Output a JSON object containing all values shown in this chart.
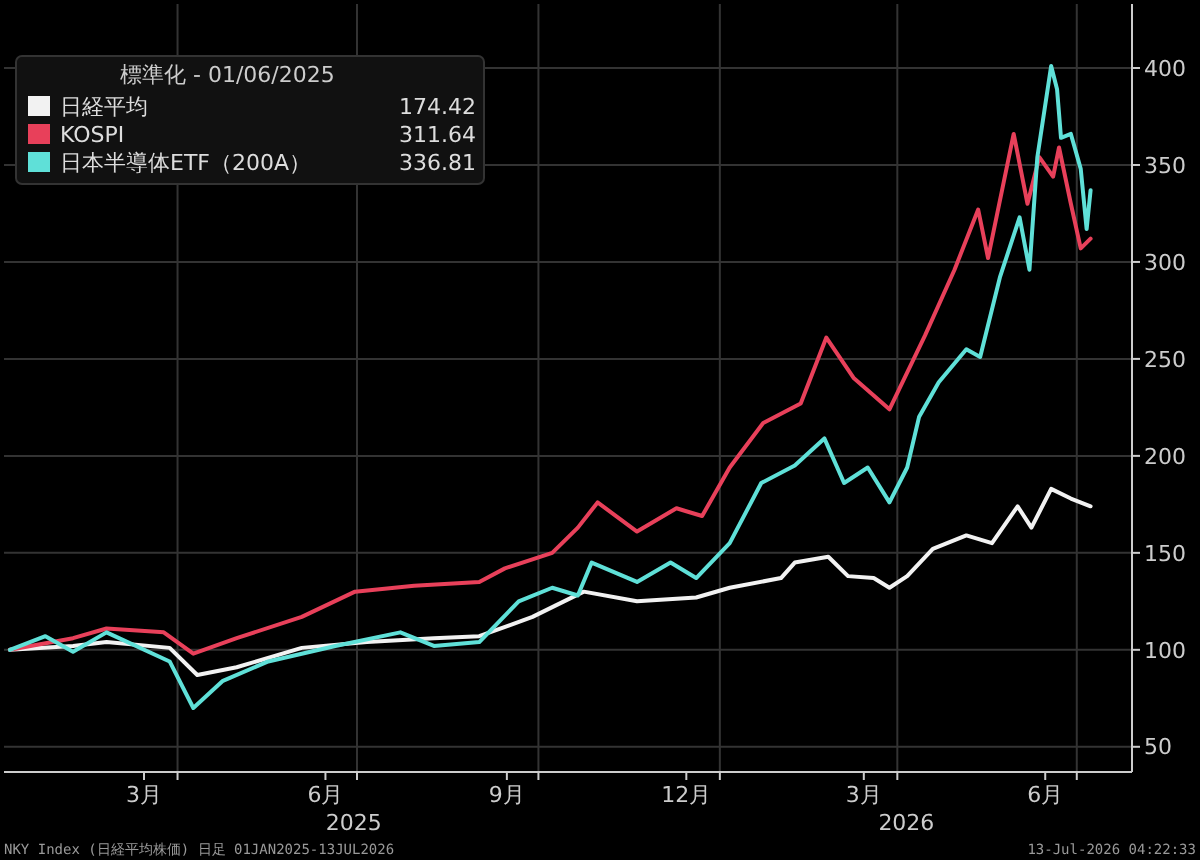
{
  "chart_data": {
    "type": "line",
    "legend_title": "標準化 - 01/06/2025",
    "legend": "top left",
    "grid": true,
    "line_style": "solid",
    "marker": "none",
    "xlim": [
      "2025-01-03",
      "2026-07-29"
    ],
    "ylim": [
      37,
      433
    ],
    "yticks": [
      50,
      100,
      150,
      200,
      250,
      300,
      350,
      400
    ],
    "xticks": [
      {
        "value": "2025-03-15",
        "label": "3月"
      },
      {
        "value": "2025-04-01",
        "label": null
      },
      {
        "value": "2025-06-15",
        "label": "6月"
      },
      {
        "value": "2025-07-01",
        "label": null
      },
      {
        "value": "2025-09-15",
        "label": "9月"
      },
      {
        "value": "2025-10-01",
        "label": null
      },
      {
        "value": "2025-12-15",
        "label": "12月"
      },
      {
        "value": "2026-01-01",
        "label": null
      },
      {
        "value": "2026-03-15",
        "label": "3月"
      },
      {
        "value": "2026-04-01",
        "label": null
      },
      {
        "value": "2026-06-15",
        "label": "6月"
      },
      {
        "value": "2026-07-01",
        "label": null
      }
    ],
    "series": [
      {
        "name": "日経平均",
        "color": "#f2f2f2",
        "x": [
          "2025-01-06",
          "2025-02-07",
          "2025-02-24",
          "2025-03-28",
          "2025-04-11",
          "2025-05-01",
          "2025-06-03",
          "2025-07-06",
          "2025-08-09",
          "2025-09-01",
          "2025-09-28",
          "2025-10-24",
          "2025-11-20",
          "2025-12-20",
          "2026-01-06",
          "2026-02-01",
          "2026-02-08",
          "2026-02-25",
          "2026-03-07",
          "2026-03-20",
          "2026-03-28",
          "2026-04-06",
          "2026-04-19",
          "2026-05-06",
          "2026-05-19",
          "2026-06-01",
          "2026-06-08",
          "2026-06-18",
          "2026-06-28",
          "2026-07-08"
        ],
        "values": [
          100,
          102,
          104,
          101,
          87,
          91,
          101,
          104,
          106,
          107,
          117,
          130,
          125,
          127,
          132,
          137,
          145,
          148,
          138,
          137,
          132,
          138,
          152,
          159,
          155,
          174,
          163,
          183,
          178,
          174
        ]
      },
      {
        "name": "KOSPI",
        "color": "#e8405a",
        "x": [
          "2025-01-06",
          "2025-02-07",
          "2025-02-24",
          "2025-03-25",
          "2025-04-09",
          "2025-05-01",
          "2025-06-03",
          "2025-06-30",
          "2025-07-30",
          "2025-09-01",
          "2025-09-14",
          "2025-10-08",
          "2025-10-21",
          "2025-10-31",
          "2025-11-20",
          "2025-12-10",
          "2025-12-23",
          "2026-01-06",
          "2026-01-23",
          "2026-02-11",
          "2026-02-24",
          "2026-03-10",
          "2026-03-28",
          "2026-04-15",
          "2026-04-30",
          "2026-05-12",
          "2026-05-17",
          "2026-05-30",
          "2026-06-06",
          "2026-06-12",
          "2026-06-19",
          "2026-06-22",
          "2026-06-28",
          "2026-07-03",
          "2026-07-08"
        ],
        "values": [
          100,
          106,
          111,
          109,
          98,
          106,
          117,
          130,
          133,
          135,
          142,
          150,
          163,
          176,
          161,
          173,
          169,
          194,
          217,
          227,
          261,
          240,
          224,
          262,
          296,
          327,
          302,
          366,
          330,
          354,
          344,
          359,
          330,
          307,
          312
        ]
      },
      {
        "name": "日本半導体ETF（200A）",
        "color": "#5fe0d8",
        "x": [
          "2025-01-06",
          "2025-01-24",
          "2025-02-07",
          "2025-02-24",
          "2025-03-28",
          "2025-04-09",
          "2025-04-24",
          "2025-05-17",
          "2025-06-20",
          "2025-07-23",
          "2025-08-09",
          "2025-09-01",
          "2025-09-21",
          "2025-10-08",
          "2025-10-21",
          "2025-10-28",
          "2025-11-20",
          "2025-12-07",
          "2025-12-20",
          "2026-01-06",
          "2026-01-22",
          "2026-02-08",
          "2026-02-23",
          "2026-03-05",
          "2026-03-17",
          "2026-03-28",
          "2026-04-06",
          "2026-04-12",
          "2026-04-22",
          "2026-05-06",
          "2026-05-13",
          "2026-05-23",
          "2026-06-02",
          "2026-06-07",
          "2026-06-11",
          "2026-06-18",
          "2026-06-21",
          "2026-06-23",
          "2026-06-28",
          "2026-07-03",
          "2026-07-06",
          "2026-07-08"
        ],
        "values": [
          100,
          107,
          99,
          109,
          94,
          70,
          84,
          94,
          102,
          109,
          102,
          104,
          125,
          132,
          128,
          145,
          135,
          145,
          137,
          155,
          186,
          195,
          209,
          186,
          194,
          176,
          194,
          220,
          238,
          255,
          251,
          292,
          323,
          296,
          354,
          401,
          389,
          364,
          366,
          348,
          317,
          337
        ]
      }
    ],
    "annotations": [
      "174.42",
      "311.64",
      "336.81",
      "2025",
      "2026",
      "NKY Index (日経平均株価) 日足 01JAN2025-13JUL2026",
      "13-Jul-2026 04:22:33"
    ]
  }
}
